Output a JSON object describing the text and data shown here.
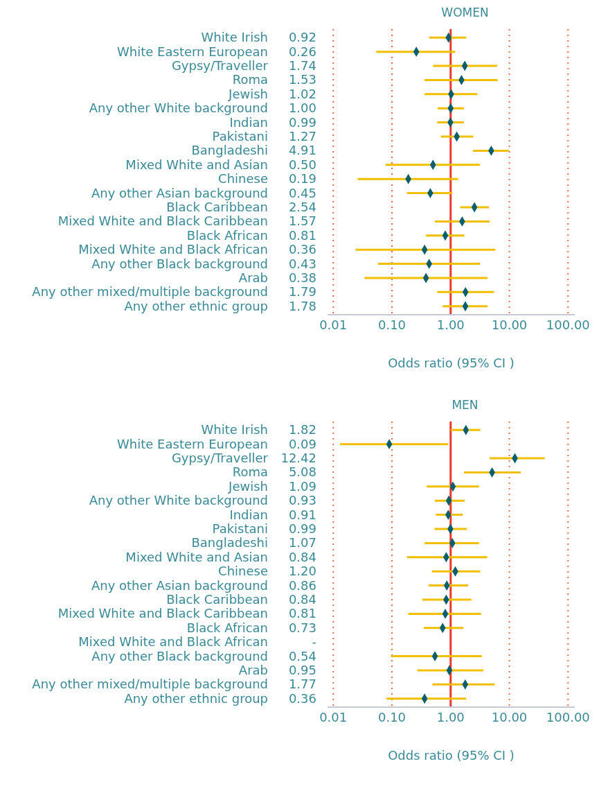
{
  "chart_data": [
    {
      "type": "scatter",
      "title": "WOMEN",
      "xlabel": "Odds ratio (95% CI )",
      "orientation": "horizontal",
      "log": "x",
      "grid": "x",
      "legend": false,
      "marker": "diamond",
      "categories": [
        "White Irish",
        "White Eastern European ",
        "Gypsy/Traveller",
        "Roma",
        "Jewish",
        "Any other White background",
        "Indian",
        "Pakistani",
        "Bangladeshi",
        "Mixed White and Asian",
        "Chinese",
        "Any other Asian background",
        "Black Caribbean",
        "Mixed White and Black Caribbean",
        "Black African",
        "Mixed White and Black African",
        "Any other Black background",
        "Arab",
        "Any other mixed/multiple background",
        "Any other ethnic group"
      ],
      "xlim": [
        0.008,
        130
      ],
      "xticks": [
        0.01,
        {
          "value": 0.1,
          "label": "0.10"
        },
        {
          "value": 1,
          "label": "1.00"
        },
        {
          "value": 10,
          "label": "10.00"
        },
        {
          "value": 100,
          "label": "100.00"
        }
      ],
      "ref_lines": [
        {
          "axis": "x",
          "value": 1,
          "color": "#e8392b",
          "line_style": "solid"
        }
      ],
      "series": [
        {
          "color": "#0b5e6e",
          "values": [
            0.92,
            0.26,
            1.74,
            1.53,
            1.02,
            1.0,
            0.99,
            1.27,
            4.91,
            0.5,
            0.19,
            0.45,
            2.54,
            1.57,
            0.81,
            0.36,
            0.43,
            0.38,
            1.79,
            1.78
          ],
          "errors": [
            [
              0.43,
              1.84
            ],
            [
              0.054,
              1.2
            ],
            [
              0.5,
              6.2
            ],
            [
              0.36,
              6.3
            ],
            [
              0.36,
              2.85
            ],
            [
              0.6,
              1.68
            ],
            [
              0.59,
              1.68
            ],
            [
              0.68,
              2.43
            ],
            [
              2.39,
              9.9
            ],
            [
              0.078,
              3.15
            ],
            [
              0.026,
              1.34
            ],
            [
              0.18,
              1.07
            ],
            [
              1.45,
              4.5
            ],
            [
              0.54,
              4.6
            ],
            [
              0.38,
              1.71
            ],
            [
              0.024,
              5.75
            ],
            [
              0.058,
              3.15
            ],
            [
              0.034,
              4.26
            ],
            [
              0.59,
              5.5
            ],
            [
              0.73,
              4.26
            ]
          ],
          "value_labels": [
            "0.92",
            "0.26",
            "1.74",
            "1.53",
            "1.02",
            "1.00",
            "0.99",
            "1.27",
            "4.91",
            "0.50",
            "0.19",
            "0.45",
            "2.54",
            "1.57",
            "0.81",
            "0.36",
            "0.43",
            "0.38",
            "1.79",
            "1.78"
          ]
        }
      ]
    },
    {
      "type": "scatter",
      "title": "MEN",
      "xlabel": "Odds ratio (95% CI )",
      "orientation": "horizontal",
      "log": "x",
      "grid": "x",
      "legend": false,
      "marker": "diamond",
      "categories": [
        "White Irish",
        "White Eastern European ",
        "Gypsy/Traveller",
        "Roma",
        "Jewish",
        "Any other White background",
        "Indian",
        "Pakistani",
        "Bangladeshi",
        "Mixed White and Asian",
        "Chinese",
        "Any other Asian background",
        "Black Caribbean",
        "Mixed White and Black Caribbean",
        "Black African",
        "Mixed White and Black African",
        "Any other Black background",
        "Arab",
        "Any other mixed/multiple background",
        "Any other ethnic group"
      ],
      "xlim": [
        0.008,
        130
      ],
      "xticks": [
        0.01,
        {
          "value": 0.1,
          "label": "0.10"
        },
        {
          "value": 1,
          "label": "1.00"
        },
        {
          "value": 10,
          "label": "10.00"
        },
        {
          "value": 100,
          "label": "100.00"
        }
      ],
      "ref_lines": [
        {
          "axis": "x",
          "value": 1,
          "color": "#e8392b",
          "line_style": "solid"
        }
      ],
      "series": [
        {
          "color": "#0b5e6e",
          "values": [
            1.82,
            0.09,
            12.42,
            5.08,
            1.09,
            0.93,
            0.91,
            0.99,
            1.07,
            0.84,
            1.2,
            0.86,
            0.84,
            0.81,
            0.73,
            null,
            0.54,
            0.95,
            1.77,
            0.36
          ],
          "errors": [
            [
              1.0,
              3.2
            ],
            [
              0.013,
              0.91
            ],
            [
              4.6,
              40
            ],
            [
              1.69,
              15.7
            ],
            [
              0.39,
              3.04
            ],
            [
              0.54,
              1.74
            ],
            [
              0.56,
              1.61
            ],
            [
              0.53,
              1.88
            ],
            [
              0.36,
              3.04
            ],
            [
              0.18,
              4.2
            ],
            [
              0.48,
              3.2
            ],
            [
              0.42,
              1.98
            ],
            [
              0.33,
              2.25
            ],
            [
              0.19,
              3.3
            ],
            [
              0.35,
              1.65
            ],
            null,
            [
              0.096,
              3.4
            ],
            [
              0.27,
              3.6
            ],
            [
              0.49,
              5.6
            ],
            [
              0.08,
              1.83
            ]
          ],
          "value_labels": [
            "1.82",
            "0.09",
            "12.42",
            "5.08",
            "1.09",
            "0.93",
            "0.91",
            "0.99",
            "1.07",
            "0.84",
            "1.20",
            "0.86",
            "0.84",
            "0.81",
            "0.73",
            "-",
            "0.54",
            "0.95",
            "1.77",
            "0.36"
          ]
        }
      ]
    }
  ]
}
